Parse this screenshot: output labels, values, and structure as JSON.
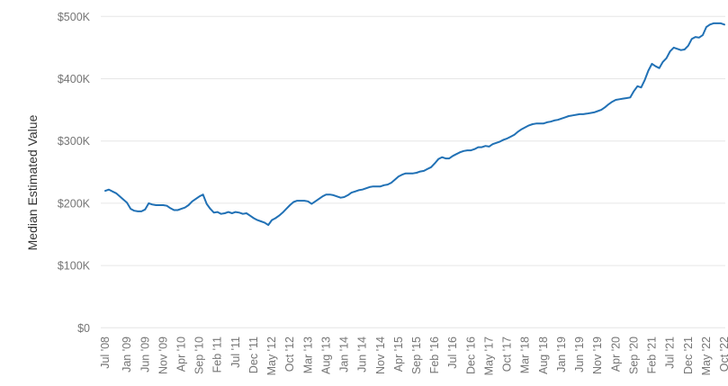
{
  "chart_data": {
    "type": "line",
    "title": "",
    "xlabel": "",
    "ylabel": "Median Estimated Value",
    "ylim": [
      0,
      500000
    ],
    "y_tick_labels": [
      "$0",
      "$100K",
      "$200K",
      "$300K",
      "$400K",
      "$500K"
    ],
    "y_tick_values_thousands": [
      0,
      100,
      200,
      300,
      400,
      500
    ],
    "grid": "horizontal-only",
    "legend": "none",
    "x_unit": "month",
    "x_tick_labels": [
      "Jul '08",
      "Jan '09",
      "Jun '09",
      "Nov '09",
      "Apr '10",
      "Sep '10",
      "Feb '11",
      "Jul '11",
      "Dec '11",
      "May '12",
      "Oct '12",
      "Mar '13",
      "Aug '13",
      "Jan '14",
      "Jun '14",
      "Nov '14",
      "Apr '15",
      "Sep '15",
      "Feb '16",
      "Jul '16",
      "Dec '16",
      "May '17",
      "Oct '17",
      "Mar '18",
      "Aug '18",
      "Jan '19",
      "Jun '19",
      "Nov '19",
      "Apr '20",
      "Sep '20",
      "Feb '21",
      "Jul '21",
      "Dec '21",
      "May '22",
      "Oct '22"
    ],
    "x_tick_month_indices": [
      0,
      6,
      11,
      16,
      21,
      26,
      31,
      36,
      41,
      46,
      51,
      56,
      61,
      66,
      71,
      76,
      81,
      86,
      91,
      96,
      101,
      106,
      111,
      116,
      121,
      126,
      131,
      136,
      141,
      146,
      151,
      156,
      161,
      166,
      171
    ],
    "series": [
      {
        "name": "Median Estimated Value",
        "start_month": "Jul 2008",
        "end_month": "Oct 2022",
        "interval_months": 1,
        "values_usd_thousands": [
          220,
          222,
          219,
          216,
          211,
          206,
          201,
          191,
          188,
          187,
          187,
          190,
          200,
          198,
          197,
          197,
          197,
          196,
          192,
          189,
          189,
          191,
          193,
          197,
          203,
          207,
          211,
          214,
          199,
          191,
          185,
          186,
          183,
          184,
          186,
          184,
          186,
          185,
          183,
          184,
          180,
          176,
          173,
          171,
          169,
          165,
          173,
          176,
          180,
          185,
          191,
          197,
          202,
          204,
          204,
          204,
          203,
          199,
          203,
          207,
          211,
          214,
          214,
          213,
          211,
          209,
          210,
          213,
          217,
          219,
          221,
          222,
          224,
          226,
          227,
          227,
          227,
          229,
          230,
          233,
          238,
          243,
          246,
          248,
          248,
          248,
          249,
          251,
          252,
          255,
          258,
          264,
          271,
          274,
          272,
          272,
          276,
          279,
          282,
          284,
          285,
          285,
          287,
          290,
          290,
          292,
          291,
          295,
          297,
          299,
          302,
          304,
          307,
          310,
          315,
          319,
          322,
          325,
          327,
          328,
          328,
          328,
          330,
          331,
          333,
          334,
          336,
          338,
          340,
          341,
          342,
          343,
          343,
          344,
          345,
          346,
          348,
          350,
          354,
          359,
          363,
          366,
          367,
          368,
          369,
          370,
          380,
          388,
          386,
          398,
          413,
          424,
          420,
          417,
          427,
          433,
          444,
          450,
          448,
          446,
          447,
          453,
          464,
          467,
          466,
          470,
          483,
          487,
          489,
          489,
          489,
          487
        ]
      }
    ],
    "colors": {
      "line": "#2171b5",
      "grid": "#e6e6e6",
      "tick_label": "#757575",
      "axis_title": "#333333",
      "background": "#ffffff"
    }
  }
}
